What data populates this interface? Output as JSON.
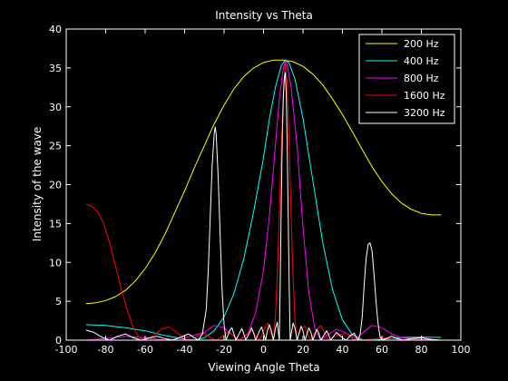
{
  "chart_data": {
    "type": "line",
    "title": "Intensity vs Theta",
    "xlabel": "Viewing Angle Theta",
    "ylabel": "Intensity of the wave",
    "xlim": [
      -100,
      100
    ],
    "ylim": [
      0,
      40
    ],
    "xticks": [
      -100,
      -80,
      -60,
      -40,
      -20,
      0,
      20,
      40,
      60,
      80,
      100
    ],
    "yticks": [
      0,
      5,
      10,
      15,
      20,
      25,
      30,
      35,
      40
    ],
    "grid": false,
    "legend_position": "top-right",
    "background": "#000000",
    "axis_color": "#ffffff",
    "series": [
      {
        "name": "200 Hz",
        "color": "#ffff00",
        "points": [
          [
            -90,
            4.7
          ],
          [
            -85,
            4.8
          ],
          [
            -80,
            5.1
          ],
          [
            -75,
            5.6
          ],
          [
            -70,
            6.4
          ],
          [
            -65,
            7.6
          ],
          [
            -60,
            9.2
          ],
          [
            -55,
            11.2
          ],
          [
            -50,
            13.6
          ],
          [
            -45,
            16.4
          ],
          [
            -40,
            19.2
          ],
          [
            -35,
            22.2
          ],
          [
            -30,
            25.0
          ],
          [
            -25,
            27.8
          ],
          [
            -20,
            30.2
          ],
          [
            -15,
            32.3
          ],
          [
            -10,
            33.9
          ],
          [
            -5,
            35.0
          ],
          [
            0,
            35.7
          ],
          [
            5,
            36.0
          ],
          [
            10,
            36.0
          ],
          [
            15,
            35.8
          ],
          [
            20,
            35.2
          ],
          [
            25,
            34.2
          ],
          [
            30,
            32.8
          ],
          [
            35,
            31.0
          ],
          [
            40,
            29.0
          ],
          [
            45,
            26.8
          ],
          [
            50,
            24.5
          ],
          [
            55,
            22.3
          ],
          [
            60,
            20.4
          ],
          [
            65,
            18.8
          ],
          [
            70,
            17.6
          ],
          [
            75,
            16.8
          ],
          [
            80,
            16.3
          ],
          [
            85,
            16.1
          ],
          [
            90,
            16.1
          ]
        ]
      },
      {
        "name": "400 Hz",
        "color": "#00ffff",
        "points": [
          [
            -90,
            2.0
          ],
          [
            -80,
            1.9
          ],
          [
            -70,
            1.6
          ],
          [
            -60,
            1.2
          ],
          [
            -50,
            0.6
          ],
          [
            -40,
            0.15
          ],
          [
            -35,
            0.0
          ],
          [
            -30,
            0.3
          ],
          [
            -25,
            1.2
          ],
          [
            -20,
            3.0
          ],
          [
            -15,
            6.0
          ],
          [
            -10,
            10.5
          ],
          [
            -5,
            16.5
          ],
          [
            0,
            23.5
          ],
          [
            3,
            28.5
          ],
          [
            6,
            32.5
          ],
          [
            9,
            35.3
          ],
          [
            11,
            36.0
          ],
          [
            13,
            35.6
          ],
          [
            16,
            33.5
          ],
          [
            20,
            28.5
          ],
          [
            25,
            20.5
          ],
          [
            30,
            12.5
          ],
          [
            35,
            6.5
          ],
          [
            40,
            2.6
          ],
          [
            45,
            0.7
          ],
          [
            50,
            0.05
          ],
          [
            55,
            0.0
          ],
          [
            60,
            0.1
          ],
          [
            70,
            0.35
          ],
          [
            80,
            0.4
          ],
          [
            90,
            0.35
          ]
        ]
      },
      {
        "name": "800 Hz",
        "color": "#ff00ff",
        "points": [
          [
            -90,
            0.0
          ],
          [
            -80,
            0.2
          ],
          [
            -70,
            0.5
          ],
          [
            -60,
            0.3
          ],
          [
            -50,
            0.0
          ],
          [
            -40,
            0.3
          ],
          [
            -30,
            1.0
          ],
          [
            -25,
            1.9
          ],
          [
            -20,
            1.6
          ],
          [
            -15,
            0.5
          ],
          [
            -12,
            0.0
          ],
          [
            -8,
            0.8
          ],
          [
            -4,
            3.5
          ],
          [
            0,
            9.0
          ],
          [
            3,
            16.0
          ],
          [
            6,
            25.0
          ],
          [
            8,
            31.0
          ],
          [
            10,
            35.0
          ],
          [
            11,
            35.8
          ],
          [
            12,
            35.5
          ],
          [
            14,
            32.5
          ],
          [
            17,
            25.0
          ],
          [
            20,
            14.5
          ],
          [
            23,
            6.0
          ],
          [
            26,
            1.5
          ],
          [
            29,
            0.0
          ],
          [
            32,
            0.6
          ],
          [
            37,
            1.4
          ],
          [
            42,
            0.9
          ],
          [
            46,
            0.0
          ],
          [
            50,
            0.9
          ],
          [
            55,
            1.9
          ],
          [
            60,
            1.6
          ],
          [
            65,
            0.8
          ],
          [
            70,
            0.3
          ],
          [
            80,
            0.1
          ],
          [
            90,
            0.0
          ]
        ]
      },
      {
        "name": "1600 Hz",
        "color": "#ff0000",
        "points": [
          [
            -90,
            17.5
          ],
          [
            -87,
            17.2
          ],
          [
            -84,
            16.5
          ],
          [
            -81,
            15.0
          ],
          [
            -78,
            12.5
          ],
          [
            -75,
            9.5
          ],
          [
            -72,
            6.5
          ],
          [
            -69,
            3.8
          ],
          [
            -66,
            1.6
          ],
          [
            -63,
            0.3
          ],
          [
            -60,
            0.0
          ],
          [
            -56,
            0.5
          ],
          [
            -52,
            1.4
          ],
          [
            -48,
            1.7
          ],
          [
            -44,
            1.0
          ],
          [
            -40,
            0.2
          ],
          [
            -37,
            0.0
          ],
          [
            -33,
            0.6
          ],
          [
            -30,
            0.9
          ],
          [
            -27,
            0.3
          ],
          [
            -24,
            0.0
          ],
          [
            -21,
            0.5
          ],
          [
            -18,
            1.0
          ],
          [
            -15,
            0.6
          ],
          [
            -12,
            0.0
          ],
          [
            -9,
            0.7
          ],
          [
            -6,
            1.3
          ],
          [
            -4,
            0.6
          ],
          [
            -2,
            0.0
          ],
          [
            0,
            1.2
          ],
          [
            2,
            2.2
          ],
          [
            4,
            0.7
          ],
          [
            5,
            0.0
          ],
          [
            6,
            3.0
          ],
          [
            7,
            8.5
          ],
          [
            8,
            16.0
          ],
          [
            9,
            25.0
          ],
          [
            10,
            31.5
          ],
          [
            11,
            35.6
          ],
          [
            12,
            33.0
          ],
          [
            13,
            25.0
          ],
          [
            14,
            16.0
          ],
          [
            15,
            8.0
          ],
          [
            16,
            2.5
          ],
          [
            17,
            0.0
          ],
          [
            19,
            1.5
          ],
          [
            21,
            1.8
          ],
          [
            23,
            0.4
          ],
          [
            24,
            0.0
          ],
          [
            26,
            1.0
          ],
          [
            29,
            1.9
          ],
          [
            31,
            1.0
          ],
          [
            33,
            0.0
          ],
          [
            37,
            0.6
          ],
          [
            42,
            0.9
          ],
          [
            46,
            0.3
          ],
          [
            50,
            0.0
          ],
          [
            60,
            0.3
          ],
          [
            70,
            0.1
          ],
          [
            80,
            0.0
          ],
          [
            90,
            0.0
          ]
        ]
      },
      {
        "name": "3200 Hz",
        "color": "#ffffff",
        "points": [
          [
            -90,
            1.3
          ],
          [
            -86,
            1.0
          ],
          [
            -82,
            0.4
          ],
          [
            -78,
            0.0
          ],
          [
            -74,
            0.5
          ],
          [
            -70,
            0.8
          ],
          [
            -66,
            0.3
          ],
          [
            -62,
            0.0
          ],
          [
            -58,
            0.3
          ],
          [
            -54,
            0.5
          ],
          [
            -50,
            0.2
          ],
          [
            -46,
            0.0
          ],
          [
            -42,
            0.4
          ],
          [
            -38,
            0.8
          ],
          [
            -35,
            0.3
          ],
          [
            -33,
            0.0
          ],
          [
            -31,
            0.8
          ],
          [
            -29,
            4.0
          ],
          [
            -28,
            9.0
          ],
          [
            -27,
            16.0
          ],
          [
            -26,
            22.5
          ],
          [
            -25,
            26.5
          ],
          [
            -24.5,
            27.4
          ],
          [
            -24,
            26.5
          ],
          [
            -23,
            21.0
          ],
          [
            -22,
            13.5
          ],
          [
            -21,
            6.5
          ],
          [
            -20,
            2.0
          ],
          [
            -19,
            0.0
          ],
          [
            -17,
            1.3
          ],
          [
            -16,
            1.6
          ],
          [
            -15,
            0.8
          ],
          [
            -14,
            0.0
          ],
          [
            -12,
            1.0
          ],
          [
            -11,
            1.5
          ],
          [
            -10,
            0.8
          ],
          [
            -9,
            0.0
          ],
          [
            -7,
            1.0
          ],
          [
            -6,
            1.6
          ],
          [
            -5,
            0.9
          ],
          [
            -4,
            0.0
          ],
          [
            -2,
            1.2
          ],
          [
            -1,
            1.7
          ],
          [
            0,
            0.9
          ],
          [
            1,
            0.0
          ],
          [
            2,
            1.3
          ],
          [
            3,
            2.0
          ],
          [
            4,
            1.2
          ],
          [
            5,
            0.0
          ],
          [
            6,
            1.5
          ],
          [
            7,
            2.3
          ],
          [
            8,
            0.0
          ],
          [
            8.5,
            8.0
          ],
          [
            9,
            18.0
          ],
          [
            9.5,
            26.0
          ],
          [
            10,
            31.0
          ],
          [
            10.5,
            33.5
          ],
          [
            11,
            34.4
          ],
          [
            11.5,
            32.0
          ],
          [
            12,
            25.0
          ],
          [
            12.5,
            16.0
          ],
          [
            13,
            7.0
          ],
          [
            13.5,
            0.0
          ],
          [
            15,
            2.2
          ],
          [
            16,
            1.5
          ],
          [
            17,
            0.0
          ],
          [
            19,
            1.8
          ],
          [
            20,
            1.2
          ],
          [
            21,
            0.0
          ],
          [
            23,
            1.6
          ],
          [
            24,
            1.0
          ],
          [
            25,
            0.0
          ],
          [
            27,
            1.4
          ],
          [
            28,
            0.9
          ],
          [
            29,
            0.0
          ],
          [
            32,
            1.2
          ],
          [
            33,
            0.7
          ],
          [
            34,
            0.0
          ],
          [
            37,
            1.0
          ],
          [
            40,
            0.3
          ],
          [
            42,
            0.0
          ],
          [
            44,
            0.6
          ],
          [
            46,
            0.9
          ],
          [
            47,
            0.4
          ],
          [
            48,
            0.0
          ],
          [
            49,
            0.8
          ],
          [
            50,
            3.0
          ],
          [
            51,
            7.0
          ],
          [
            52,
            10.5
          ],
          [
            53,
            12.3
          ],
          [
            54,
            12.5
          ],
          [
            55,
            11.5
          ],
          [
            56,
            8.5
          ],
          [
            57,
            5.0
          ],
          [
            58,
            2.2
          ],
          [
            59,
            0.5
          ],
          [
            60,
            0.0
          ],
          [
            62,
            0.2
          ],
          [
            65,
            0.5
          ],
          [
            68,
            0.2
          ],
          [
            71,
            0.0
          ],
          [
            75,
            0.2
          ],
          [
            80,
            0.3
          ],
          [
            85,
            0.1
          ],
          [
            90,
            0.0
          ]
        ]
      }
    ]
  }
}
